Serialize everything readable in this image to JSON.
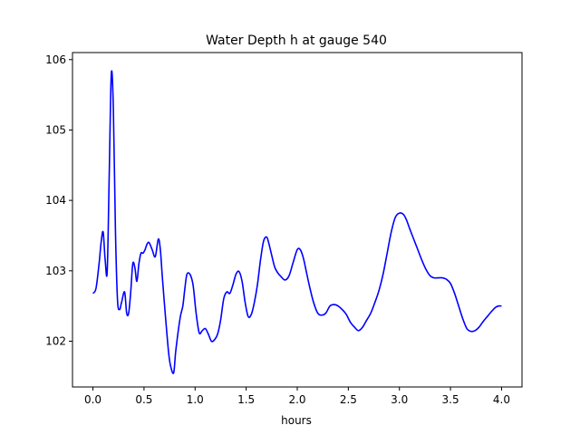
{
  "chart_data": {
    "type": "line",
    "title": "Water Depth h at gauge 540",
    "xlabel": "hours",
    "ylabel": "",
    "xlim": [
      -0.2,
      4.2
    ],
    "ylim": [
      101.35,
      106.1
    ],
    "xticks": [
      0.0,
      0.5,
      1.0,
      1.5,
      2.0,
      2.5,
      3.0,
      3.5,
      4.0
    ],
    "xtick_labels": [
      "0.0",
      "0.5",
      "1.0",
      "1.5",
      "2.0",
      "2.5",
      "3.0",
      "3.5",
      "4.0"
    ],
    "yticks": [
      102,
      103,
      104,
      105,
      106
    ],
    "ytick_labels": [
      "102",
      "103",
      "104",
      "105",
      "106"
    ],
    "grid": false,
    "series": [
      {
        "color": "#0000ff",
        "x": [
          0.0,
          0.03,
          0.06,
          0.08,
          0.1,
          0.12,
          0.14,
          0.16,
          0.18,
          0.2,
          0.22,
          0.24,
          0.26,
          0.28,
          0.31,
          0.33,
          0.35,
          0.37,
          0.39,
          0.41,
          0.43,
          0.45,
          0.47,
          0.49,
          0.51,
          0.53,
          0.55,
          0.58,
          0.61,
          0.64,
          0.66,
          0.68,
          0.71,
          0.74,
          0.76,
          0.79,
          0.81,
          0.84,
          0.86,
          0.88,
          0.9,
          0.92,
          0.95,
          0.98,
          1.01,
          1.04,
          1.07,
          1.1,
          1.13,
          1.16,
          1.19,
          1.22,
          1.25,
          1.28,
          1.31,
          1.34,
          1.37,
          1.4,
          1.43,
          1.46,
          1.49,
          1.52,
          1.55,
          1.58,
          1.61,
          1.64,
          1.67,
          1.7,
          1.72,
          1.75,
          1.78,
          1.81,
          1.84,
          1.88,
          1.92,
          1.96,
          2.0,
          2.03,
          2.06,
          2.09,
          2.12,
          2.16,
          2.2,
          2.24,
          2.28,
          2.32,
          2.36,
          2.4,
          2.44,
          2.48,
          2.52,
          2.56,
          2.6,
          2.64,
          2.68,
          2.72,
          2.76,
          2.8,
          2.84,
          2.88,
          2.92,
          2.96,
          3.0,
          3.04,
          3.07,
          3.1,
          3.14,
          3.18,
          3.22,
          3.26,
          3.3,
          3.34,
          3.38,
          3.42,
          3.46,
          3.5,
          3.54,
          3.58,
          3.62,
          3.66,
          3.7,
          3.74,
          3.78,
          3.82,
          3.86,
          3.9,
          3.94,
          3.97,
          4.0
        ],
        "y": [
          102.68,
          102.75,
          103.1,
          103.4,
          103.55,
          103.15,
          103.0,
          104.4,
          105.8,
          105.3,
          103.6,
          102.6,
          102.45,
          102.55,
          102.7,
          102.4,
          102.4,
          102.7,
          103.1,
          103.05,
          102.85,
          103.1,
          103.25,
          103.25,
          103.3,
          103.38,
          103.4,
          103.3,
          103.2,
          103.45,
          103.3,
          102.9,
          102.35,
          101.85,
          101.65,
          101.55,
          101.85,
          102.2,
          102.38,
          102.5,
          102.75,
          102.95,
          102.95,
          102.8,
          102.4,
          102.12,
          102.15,
          102.18,
          102.1,
          102.0,
          102.02,
          102.1,
          102.3,
          102.6,
          102.7,
          102.68,
          102.8,
          102.95,
          102.99,
          102.85,
          102.55,
          102.35,
          102.38,
          102.55,
          102.8,
          103.15,
          103.42,
          103.48,
          103.4,
          103.22,
          103.05,
          102.97,
          102.92,
          102.87,
          102.93,
          103.12,
          103.3,
          103.3,
          103.18,
          102.98,
          102.78,
          102.55,
          102.4,
          102.37,
          102.4,
          102.5,
          102.52,
          102.5,
          102.45,
          102.38,
          102.27,
          102.2,
          102.15,
          102.2,
          102.3,
          102.4,
          102.55,
          102.72,
          102.95,
          103.25,
          103.55,
          103.76,
          103.82,
          103.8,
          103.72,
          103.6,
          103.45,
          103.3,
          103.15,
          103.02,
          102.93,
          102.9,
          102.9,
          102.9,
          102.88,
          102.82,
          102.68,
          102.5,
          102.32,
          102.18,
          102.14,
          102.15,
          102.2,
          102.28,
          102.35,
          102.42,
          102.48,
          102.5,
          102.5
        ]
      }
    ]
  }
}
